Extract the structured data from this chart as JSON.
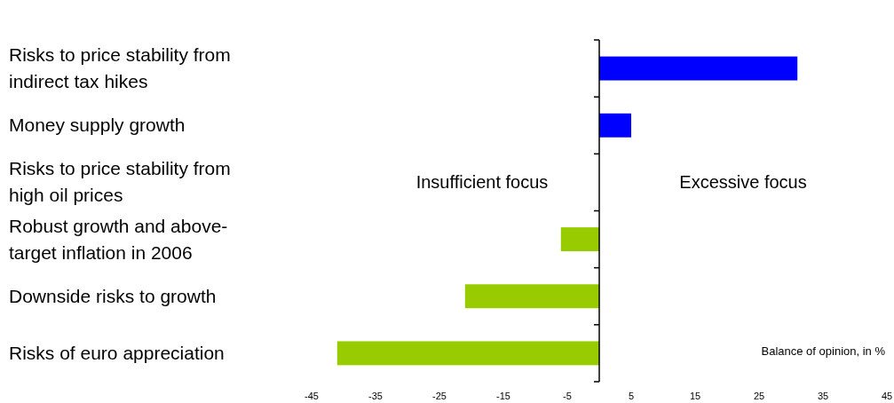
{
  "chart_data": {
    "type": "bar",
    "orientation": "horizontal",
    "categories": [
      "Risks to price stability from indirect tax hikes",
      "Money supply growth",
      "Risks to price stability from high oil prices",
      "Robust growth and above-target inflation in 2006",
      "Downside risks to growth",
      "Risks of euro appreciation"
    ],
    "values": [
      31,
      5,
      0,
      -6,
      -21,
      -41
    ],
    "colors": [
      "#0000ff",
      "#0000ff",
      "#0000ff",
      "#99cc00",
      "#99cc00",
      "#99cc00"
    ],
    "xlim": [
      -45,
      45
    ],
    "xticks": [
      -45,
      -35,
      -25,
      -15,
      -5,
      5,
      15,
      25,
      35,
      45
    ],
    "grid": false,
    "annotations": [
      "Insufficient focus",
      "Excessive focus",
      "Balance of opinion, in %"
    ]
  }
}
